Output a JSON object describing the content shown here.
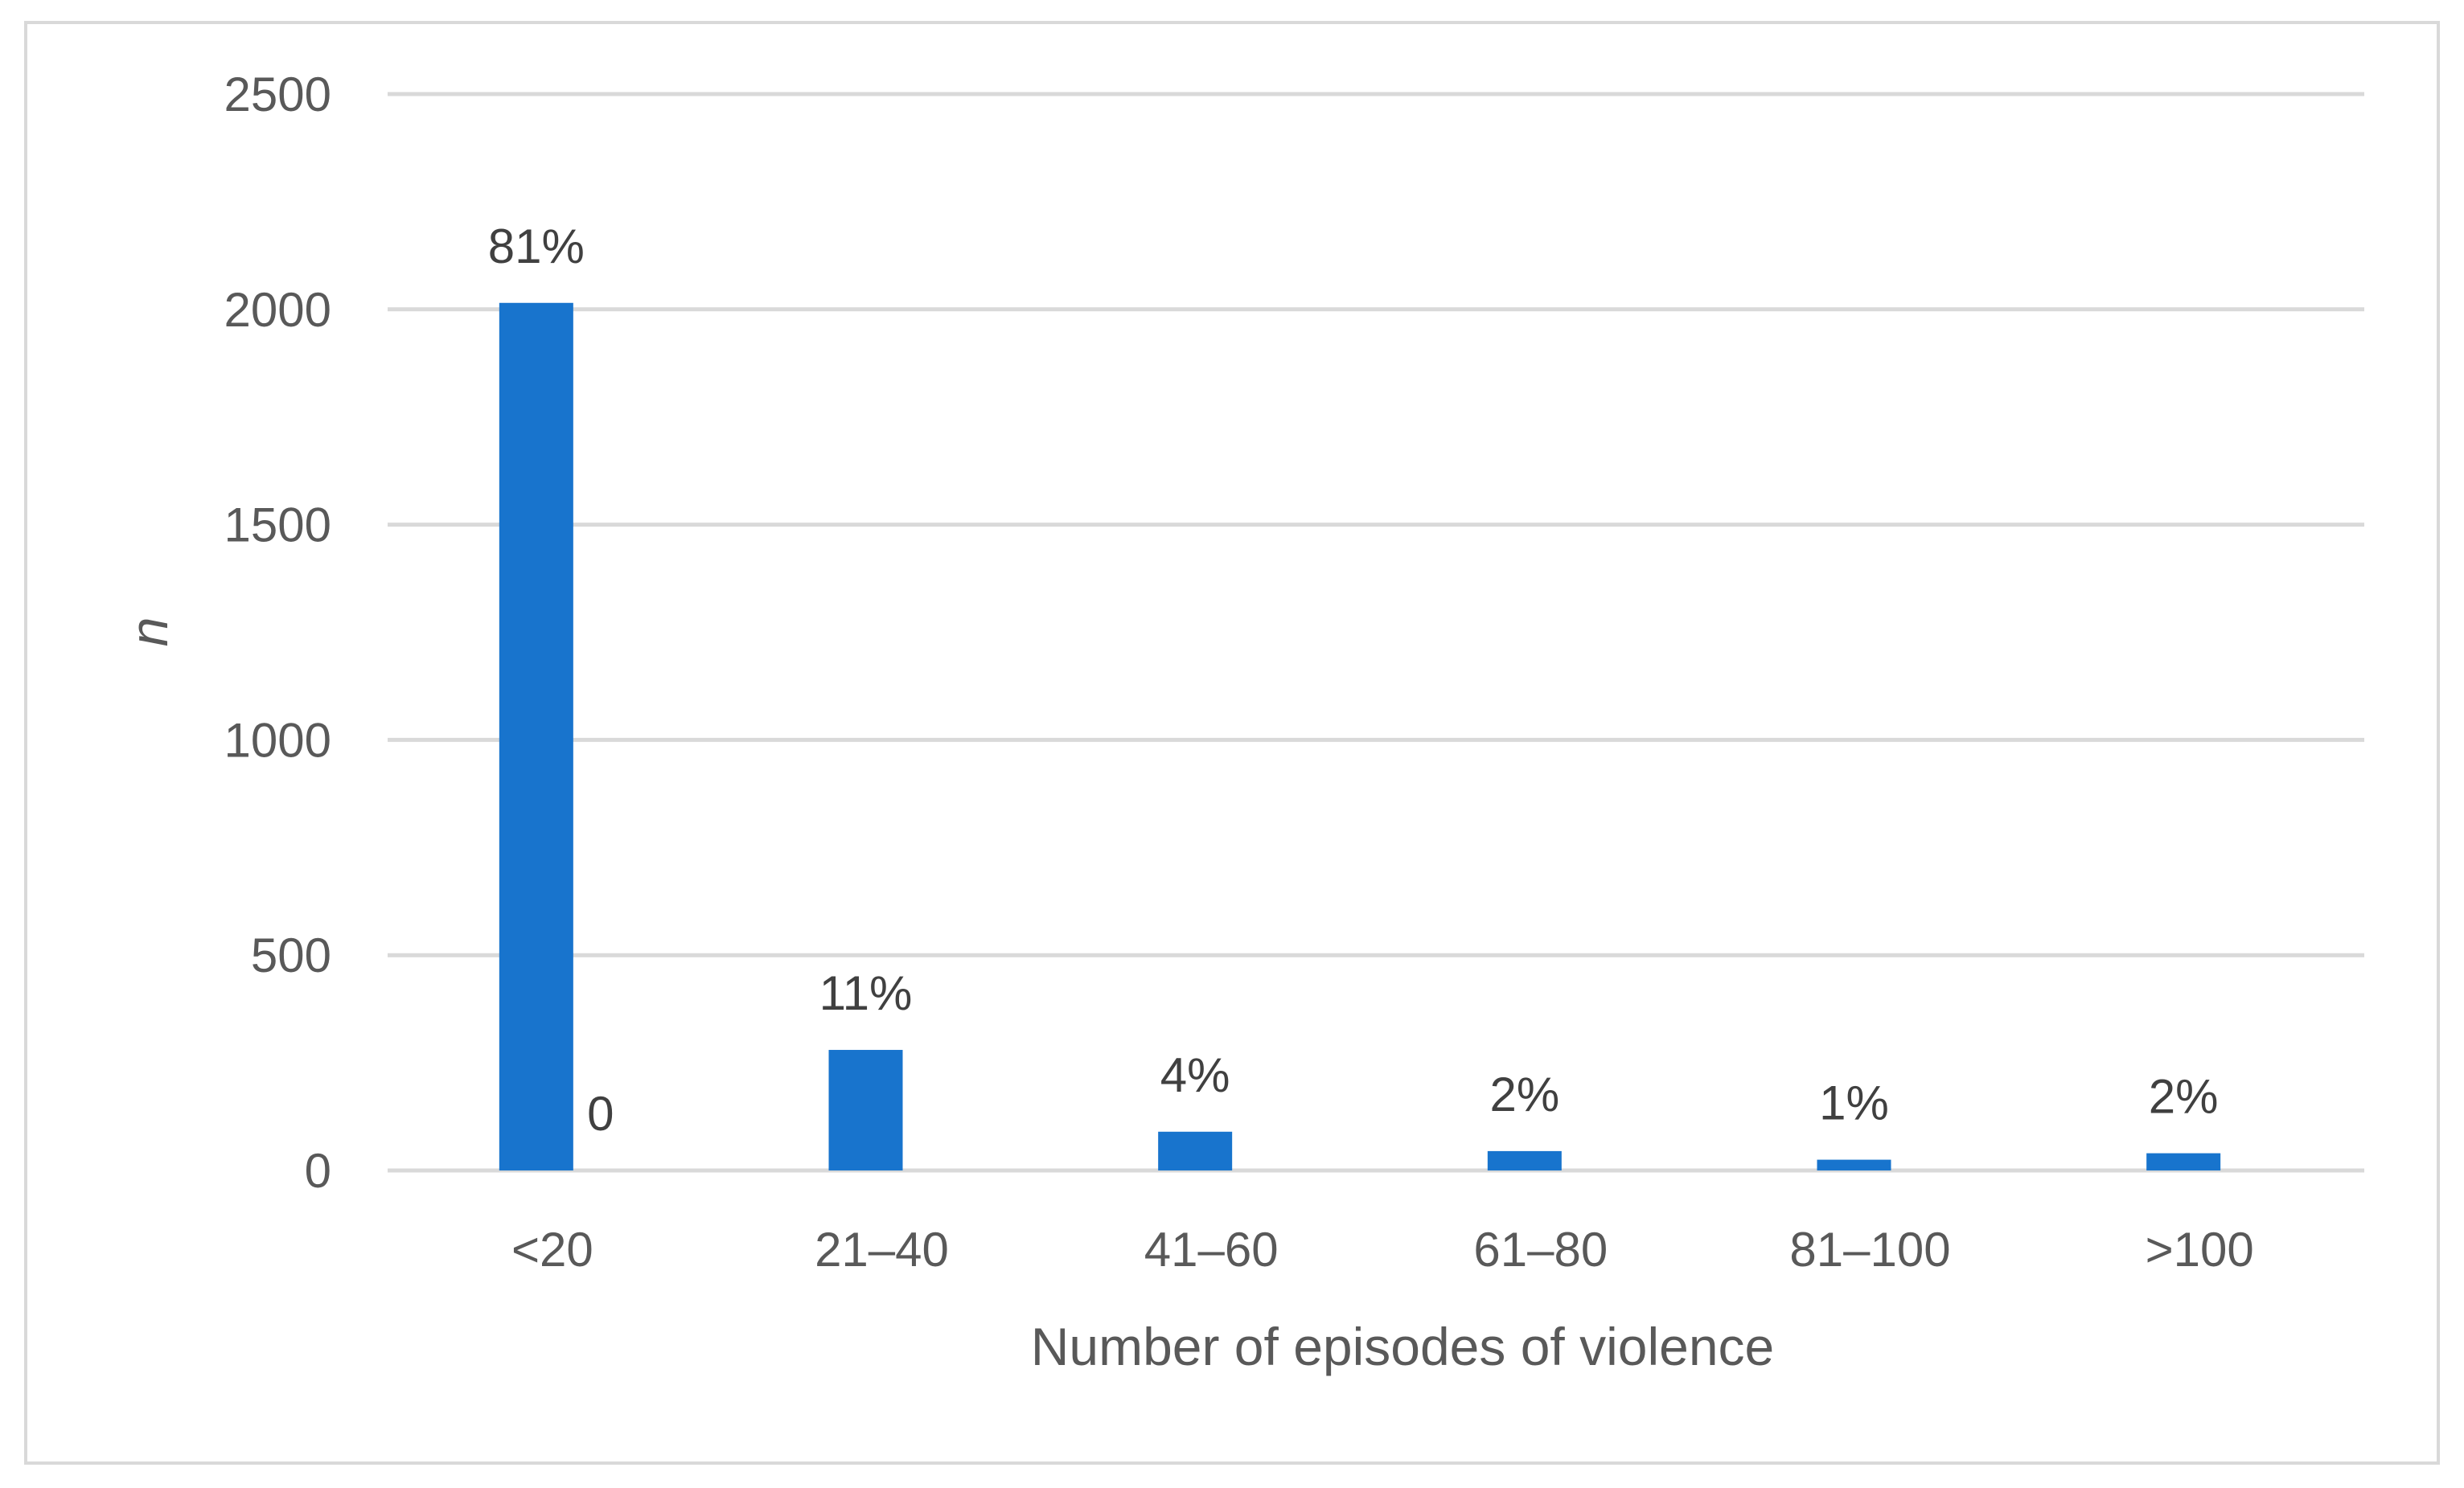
{
  "chart_data": {
    "type": "bar",
    "title": "",
    "xlabel": "Number of episodes of violence",
    "ylabel": "n",
    "ylim": [
      0,
      2500
    ],
    "yticks": [
      0,
      500,
      1000,
      1500,
      2000,
      2500
    ],
    "categories": [
      "<20",
      "21–40",
      "41–60",
      "61–80",
      "81–100",
      ">100"
    ],
    "series": [
      {
        "values": [
          2015,
          280,
          90,
          45,
          25,
          40
        ],
        "color": "#1874cd"
      },
      {
        "values": [
          0,
          0,
          0,
          0,
          0,
          0
        ],
        "color": "#1874cd"
      }
    ],
    "data_labels": [
      "81%",
      "11%",
      "4%",
      "2%",
      "1%",
      "2%"
    ],
    "extra_labels": [
      {
        "category_index": 0,
        "series_index": 1,
        "text": "0"
      }
    ],
    "grid": true,
    "gridline_color": "#d9d9d9",
    "legend": "none"
  }
}
